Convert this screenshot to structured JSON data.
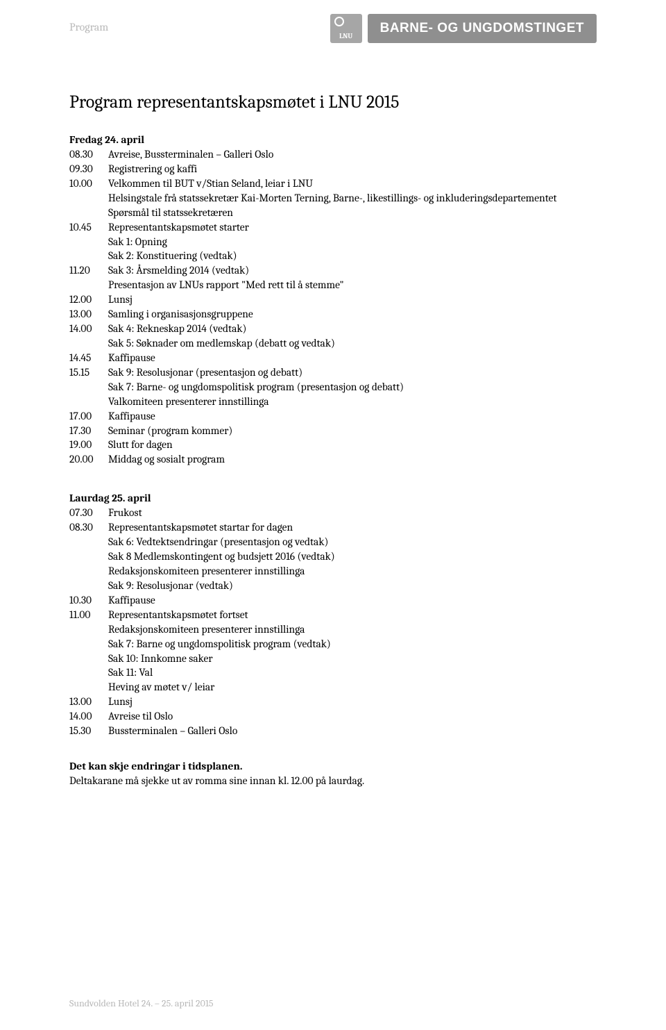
{
  "header": {
    "label": "Program",
    "logo_text": "BARNE- OG UNGDOMSTINGET"
  },
  "title": "Program representantskapsmøtet i LNU 2015",
  "day1": {
    "heading": "Fredag 24. april",
    "rows": [
      {
        "time": "08.30",
        "lines": [
          "Avreise, Bussterminalen – Galleri Oslo"
        ]
      },
      {
        "time": "09.30",
        "lines": [
          "Registrering og kaffi"
        ]
      },
      {
        "time": "10.00",
        "lines": [
          "Velkommen til BUT v/Stian Seland, leiar i LNU",
          "Helsingstale frå statssekretær Kai-Morten Terning, Barne-, likestillings- og inkluderingsdepartementet",
          "Spørsmål til statssekretæren"
        ]
      },
      {
        "time": "10.45",
        "lines": [
          "Representantskapsmøtet starter",
          "Sak 1: Opning",
          "Sak 2: Konstituering (vedtak)"
        ]
      },
      {
        "time": "11.20",
        "lines": [
          "Sak 3: Årsmelding 2014 (vedtak)",
          "Presentasjon av LNUs rapport \"Med rett til å stemme\""
        ]
      },
      {
        "time": "12.00",
        "lines": [
          "Lunsj"
        ]
      },
      {
        "time": "13.00",
        "lines": [
          "Samling i organisasjonsgruppene"
        ]
      },
      {
        "time": "14.00",
        "lines": [
          "Sak 4: Rekneskap 2014 (vedtak)",
          "Sak 5: Søknader om medlemskap (debatt og vedtak)"
        ]
      },
      {
        "time": "14.45",
        "lines": [
          "Kaffipause"
        ]
      },
      {
        "time": "15.15",
        "lines": [
          "Sak 9: Resolusjonar (presentasjon og debatt)",
          "Sak 7: Barne- og ungdomspolitisk program (presentasjon og debatt)",
          "Valkomiteen presenterer innstillinga"
        ]
      },
      {
        "time": "17.00",
        "lines": [
          "Kaffipause"
        ]
      },
      {
        "time": "17.30",
        "lines": [
          "Seminar  (program kommer)"
        ]
      },
      {
        "time": "19.00",
        "lines": [
          "Slutt for dagen"
        ]
      },
      {
        "time": "20.00",
        "lines": [
          "Middag og sosialt program"
        ]
      }
    ]
  },
  "day2": {
    "heading": "Laurdag 25. april",
    "rows": [
      {
        "time": "07.30",
        "lines": [
          "Frukost"
        ]
      },
      {
        "time": "08.30",
        "lines": [
          "Representantskapsmøtet startar for dagen",
          "Sak 6: Vedtektsendringar (presentasjon og vedtak)",
          "Sak 8 Medlemskontingent og budsjett 2016 (vedtak)",
          "Redaksjonskomiteen presenterer innstillinga",
          "Sak 9: Resolusjonar (vedtak)"
        ]
      },
      {
        "time": "10.30",
        "lines": [
          "Kaffipause"
        ]
      },
      {
        "time": "11.00",
        "lines": [
          "Representantskapsmøtet fortset",
          "Redaksjonskomiteen presenterer innstillinga",
          "Sak 7: Barne og ungdomspolitisk program (vedtak)",
          "Sak 10: Innkomne saker",
          "Sak 11: Val",
          "Heving av møtet v/ leiar"
        ]
      },
      {
        "time": "13.00",
        "lines": [
          "Lunsj"
        ]
      },
      {
        "time": "14.00",
        "lines": [
          "Avreise til Oslo"
        ]
      },
      {
        "time": "15.30",
        "lines": [
          "Bussterminalen – Galleri Oslo"
        ]
      }
    ]
  },
  "notes": {
    "line1": "Det kan skje endringar i tidsplanen.",
    "line2": "Deltakarane må sjekke ut av romma sine innan kl. 12.00 på laurdag."
  },
  "footer": "Sundvolden Hotel 24. – 25. april 2015"
}
